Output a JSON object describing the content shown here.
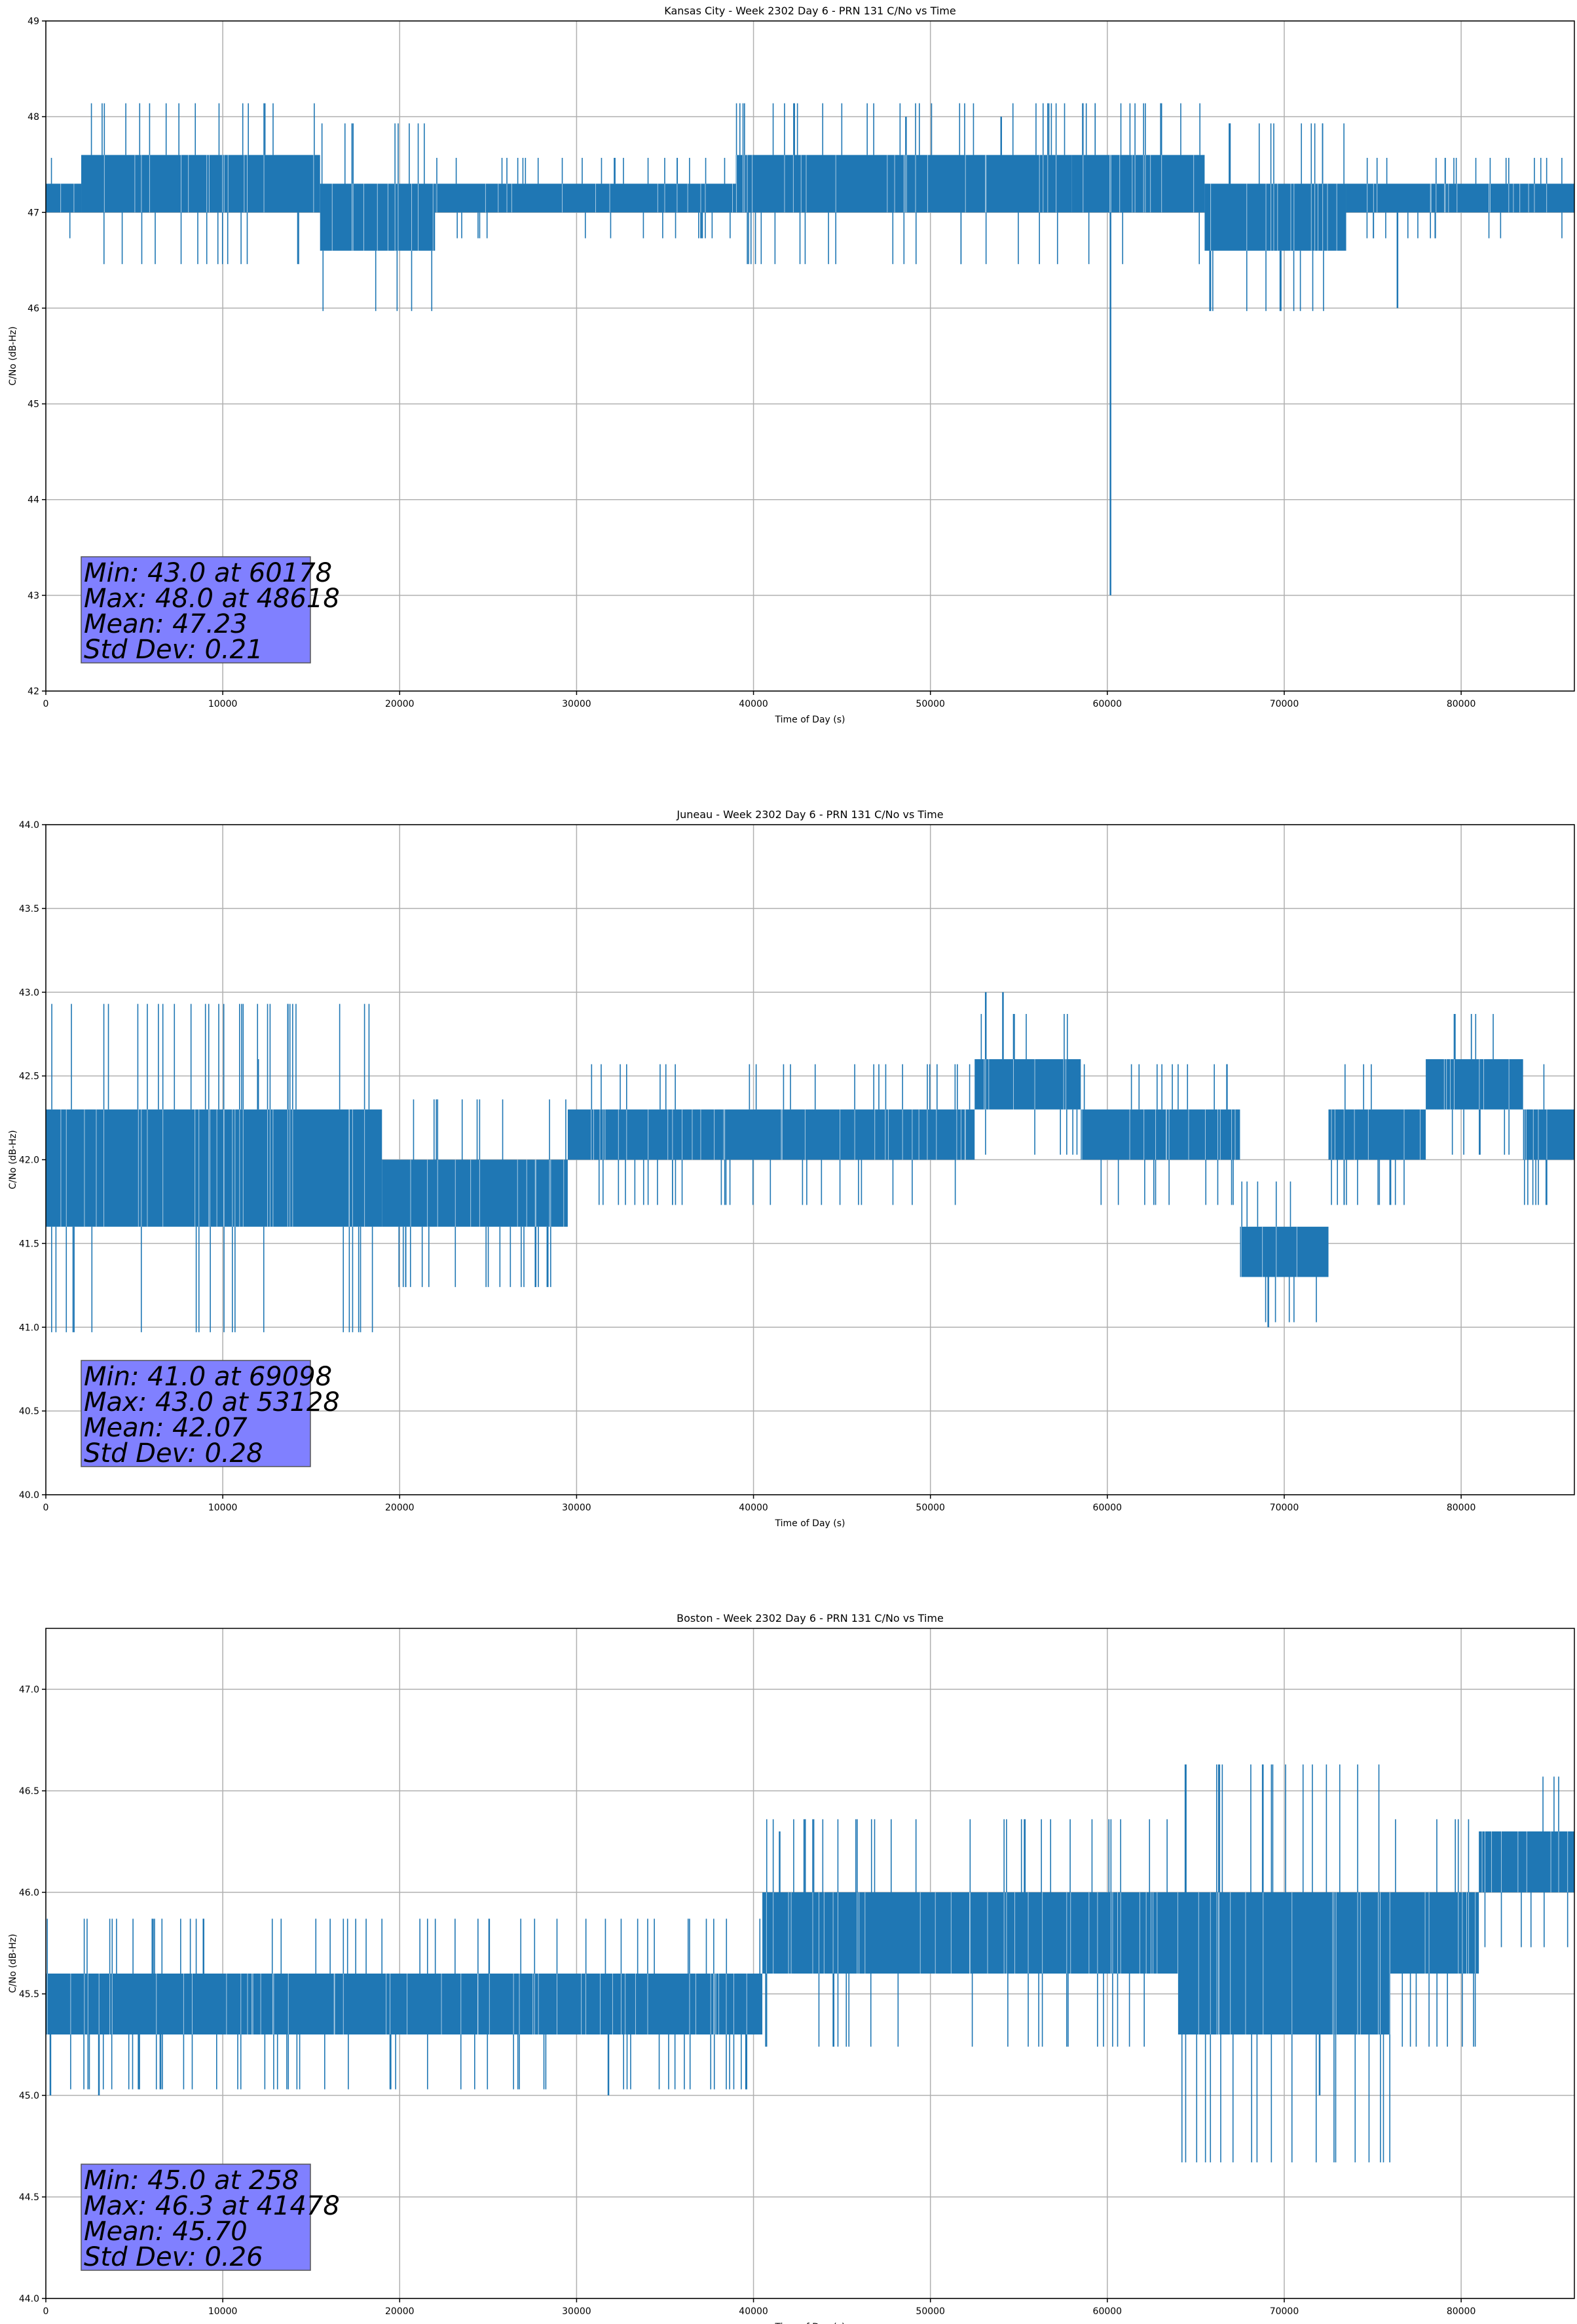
{
  "chart_data": [
    {
      "type": "line",
      "title": "Kansas City - Week 2302 Day 6 - PRN 131 C/No vs Time",
      "xlabel": "Time of Day (s)",
      "ylabel": "C/No (dB-Hz)",
      "xlim": [
        0,
        86400
      ],
      "ylim": [
        42,
        49
      ],
      "xticks": [
        0,
        10000,
        20000,
        30000,
        40000,
        50000,
        60000,
        70000,
        80000
      ],
      "yticks": [
        42,
        43,
        44,
        45,
        46,
        47,
        48,
        49
      ],
      "ytick_labels": [
        "42",
        "43",
        "44",
        "45",
        "46",
        "47",
        "48",
        "49"
      ],
      "grid": true,
      "color": "#1f77b4",
      "segments": [
        {
          "x0": 0,
          "x1": 2000,
          "low": 47.0,
          "high": 47.3
        },
        {
          "x0": 2000,
          "x1": 15500,
          "low": 47.0,
          "high": 47.6
        },
        {
          "x0": 15500,
          "x1": 22000,
          "low": 46.6,
          "high": 47.3
        },
        {
          "x0": 22000,
          "x1": 39000,
          "low": 47.0,
          "high": 47.3
        },
        {
          "x0": 39000,
          "x1": 58000,
          "low": 47.0,
          "high": 47.6
        },
        {
          "x0": 58000,
          "x1": 65500,
          "low": 47.0,
          "high": 47.6
        },
        {
          "x0": 65500,
          "x1": 73500,
          "low": 46.6,
          "high": 47.3
        },
        {
          "x0": 73500,
          "x1": 86400,
          "low": 47.0,
          "high": 47.3
        }
      ],
      "spikes": [
        {
          "x": 60178,
          "y": 43.0
        },
        {
          "x": 48618,
          "y": 48.0
        },
        {
          "x": 54000,
          "y": 48.0
        },
        {
          "x": 76400,
          "y": 46.0
        }
      ],
      "stats": [
        "Min: 43.0 at 60178",
        "Max: 48.0 at 48618",
        "Mean: 47.23",
        "Std Dev: 0.21"
      ]
    },
    {
      "type": "line",
      "title": "Juneau - Week 2302 Day 6 - PRN 131 C/No vs Time",
      "xlabel": "Time of Day (s)",
      "ylabel": "C/No (dB-Hz)",
      "xlim": [
        0,
        86400
      ],
      "ylim": [
        40.0,
        44.0
      ],
      "xticks": [
        0,
        10000,
        20000,
        30000,
        40000,
        50000,
        60000,
        70000,
        80000
      ],
      "yticks": [
        40.0,
        40.5,
        41.0,
        41.5,
        42.0,
        42.5,
        43.0,
        43.5,
        44.0
      ],
      "ytick_labels": [
        "40.0",
        "40.5",
        "41.0",
        "41.5",
        "42.0",
        "42.5",
        "43.0",
        "43.5",
        "44.0"
      ],
      "grid": true,
      "color": "#1f77b4",
      "segments": [
        {
          "x0": 0,
          "x1": 19000,
          "low": 41.6,
          "high": 42.3
        },
        {
          "x0": 19000,
          "x1": 29500,
          "low": 41.6,
          "high": 42.0
        },
        {
          "x0": 29500,
          "x1": 52500,
          "low": 42.0,
          "high": 42.3
        },
        {
          "x0": 52500,
          "x1": 58500,
          "low": 42.3,
          "high": 42.6
        },
        {
          "x0": 58500,
          "x1": 67500,
          "low": 42.0,
          "high": 42.3
        },
        {
          "x0": 67500,
          "x1": 72500,
          "low": 41.3,
          "high": 41.6
        },
        {
          "x0": 72500,
          "x1": 78000,
          "low": 42.0,
          "high": 42.3
        },
        {
          "x0": 78000,
          "x1": 83500,
          "low": 42.3,
          "high": 42.6
        },
        {
          "x0": 83500,
          "x1": 86400,
          "low": 42.0,
          "high": 42.3
        }
      ],
      "spikes": [
        {
          "x": 69098,
          "y": 41.0
        },
        {
          "x": 53128,
          "y": 43.0
        },
        {
          "x": 54100,
          "y": 43.0
        },
        {
          "x": 12000,
          "y": 42.6
        }
      ],
      "stats": [
        "Min: 41.0 at 69098",
        "Max: 43.0 at 53128",
        "Mean: 42.07",
        "Std Dev: 0.28"
      ]
    },
    {
      "type": "line",
      "title": "Boston - Week 2302 Day 6 - PRN 131 C/No vs Time",
      "xlabel": "Time of Day (s)",
      "ylabel": "C/No (dB-Hz)",
      "xlim": [
        0,
        86400
      ],
      "ylim": [
        44.0,
        47.3
      ],
      "xticks": [
        0,
        10000,
        20000,
        30000,
        40000,
        50000,
        60000,
        70000,
        80000
      ],
      "yticks": [
        44.0,
        44.5,
        45.0,
        45.5,
        46.0,
        46.5,
        47.0
      ],
      "ytick_labels": [
        "44.0",
        "44.5",
        "45.0",
        "45.5",
        "46.0",
        "46.5",
        "47.0"
      ],
      "grid": true,
      "color": "#1f77b4",
      "segments": [
        {
          "x0": 0,
          "x1": 40500,
          "low": 45.3,
          "high": 45.6
        },
        {
          "x0": 40500,
          "x1": 64000,
          "low": 45.6,
          "high": 46.0
        },
        {
          "x0": 64000,
          "x1": 76000,
          "low": 45.3,
          "high": 46.0
        },
        {
          "x0": 76000,
          "x1": 81000,
          "low": 45.6,
          "high": 46.0
        },
        {
          "x0": 81000,
          "x1": 86400,
          "low": 46.0,
          "high": 46.3
        }
      ],
      "spikes": [
        {
          "x": 258,
          "y": 45.0
        },
        {
          "x": 3000,
          "y": 45.0
        },
        {
          "x": 31800,
          "y": 45.0
        },
        {
          "x": 41478,
          "y": 46.3
        },
        {
          "x": 72000,
          "y": 45.0
        }
      ],
      "stats": [
        "Min: 45.0 at 258",
        "Max: 46.3 at 41478",
        "Mean: 45.70",
        "Std Dev: 0.26"
      ]
    }
  ]
}
